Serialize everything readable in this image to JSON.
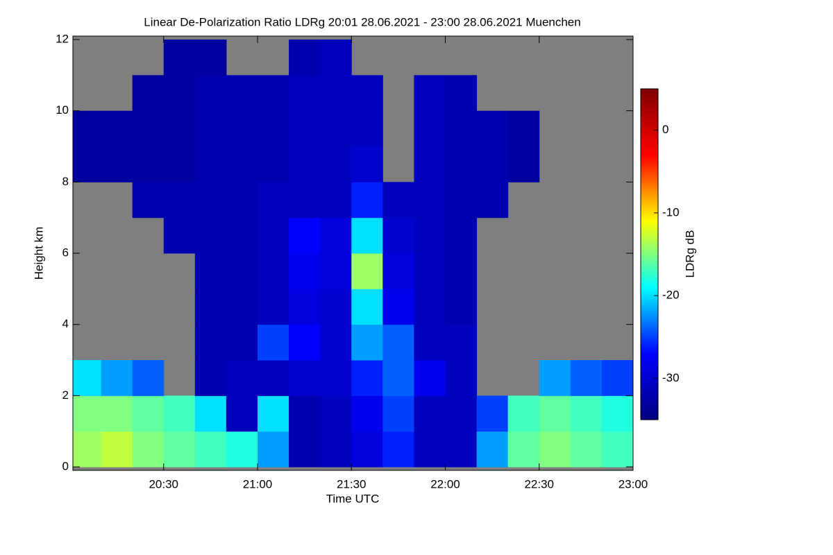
{
  "chart_data": {
    "type": "heatmap",
    "title": "Linear De-Polarization Ratio LDRg   20:01 28.06.2021 - 23:00 28.06.2021 Muenchen",
    "x_label": "Time UTC",
    "y_label": "Height km",
    "colorbar_label": "LDRg dB",
    "xlim": [
      20.0167,
      23
    ],
    "xticks": [
      {
        "value": 20.5,
        "label": "20:30"
      },
      {
        "value": 21,
        "label": "21:00"
      },
      {
        "value": 21.5,
        "label": "21:30"
      },
      {
        "value": 22,
        "label": "22:00"
      },
      {
        "value": 22.5,
        "label": "22:30"
      },
      {
        "value": 23,
        "label": "23:00"
      }
    ],
    "ylim": [
      0,
      12
    ],
    "yticks": [
      0,
      2,
      4,
      6,
      8,
      10,
      12
    ],
    "clim": [
      -35,
      5
    ],
    "cticks": [
      -30,
      -20,
      -10,
      0
    ],
    "colormap": [
      "#00007f",
      "#0000ff",
      "#00ffff",
      "#ffff00",
      "#ff0000",
      "#7f0000"
    ],
    "nan_color": "#7f7f7f",
    "xbins": [
      20.0167,
      20.1667,
      20.3333,
      20.5,
      20.6667,
      20.8333,
      21,
      21.1667,
      21.3333,
      21.5,
      21.6667,
      21.8333,
      22,
      22.1667,
      22.3333,
      22.5,
      22.6667,
      22.8333,
      23
    ],
    "ybins": [
      0,
      1,
      2,
      3,
      4,
      5,
      6,
      7,
      8,
      9,
      10,
      11,
      12
    ],
    "z": [
      [
        -14,
        -13,
        -15,
        -16,
        -17,
        -18,
        -22,
        -32,
        -31,
        -29,
        -26,
        -31,
        -31,
        -22,
        -16,
        -15,
        -16,
        -17
      ],
      [
        -15,
        -15,
        -16,
        -17,
        -20,
        -31,
        -20,
        -32,
        -31,
        -28,
        -25,
        -31,
        -31,
        -25,
        -17,
        -16,
        -17,
        -18
      ],
      [
        -20,
        -22,
        -24,
        null,
        -32,
        -31,
        -31,
        -30,
        -30,
        -26,
        -24,
        -28,
        -31,
        null,
        null,
        -22,
        -24,
        -25
      ],
      [
        null,
        null,
        null,
        null,
        -32,
        -32,
        -25,
        -27,
        -30,
        -22,
        -24,
        -31,
        -31,
        null,
        null,
        null,
        null,
        null
      ],
      [
        null,
        null,
        null,
        null,
        -32,
        -32,
        -31,
        -29,
        -30,
        -20,
        -28,
        -31,
        -32,
        null,
        null,
        null,
        null,
        null
      ],
      [
        null,
        null,
        null,
        null,
        -32,
        -32,
        -31,
        -28,
        -29,
        -14,
        -29,
        -31,
        -32,
        null,
        null,
        null,
        null,
        null
      ],
      [
        null,
        null,
        null,
        -32,
        -32,
        -32,
        -31,
        -27,
        -29,
        -20,
        -30,
        -31,
        -32,
        null,
        null,
        null,
        null,
        null
      ],
      [
        null,
        null,
        -32,
        -32,
        -32,
        -32,
        -31,
        -31,
        -31,
        -26,
        -31,
        -31,
        -32,
        -32,
        null,
        null,
        null,
        null
      ],
      [
        -33,
        -33,
        -33,
        -33,
        -32,
        -32,
        -32,
        -31,
        -31,
        -30,
        null,
        -31,
        -32,
        -32,
        -33,
        null,
        null,
        null
      ],
      [
        -33,
        -33,
        -33,
        -33,
        -32,
        -32,
        -32,
        -31,
        -31,
        -31,
        null,
        -31,
        -32,
        -32,
        -33,
        null,
        null,
        null
      ],
      [
        null,
        null,
        -33,
        -33,
        -32,
        -32,
        -32,
        -31,
        -31,
        -31,
        null,
        -31,
        -32,
        null,
        null,
        null,
        null,
        null
      ],
      [
        null,
        null,
        null,
        -33,
        -33,
        null,
        null,
        -32,
        -31,
        null,
        null,
        null,
        null,
        null,
        null,
        null,
        null,
        null
      ]
    ]
  }
}
